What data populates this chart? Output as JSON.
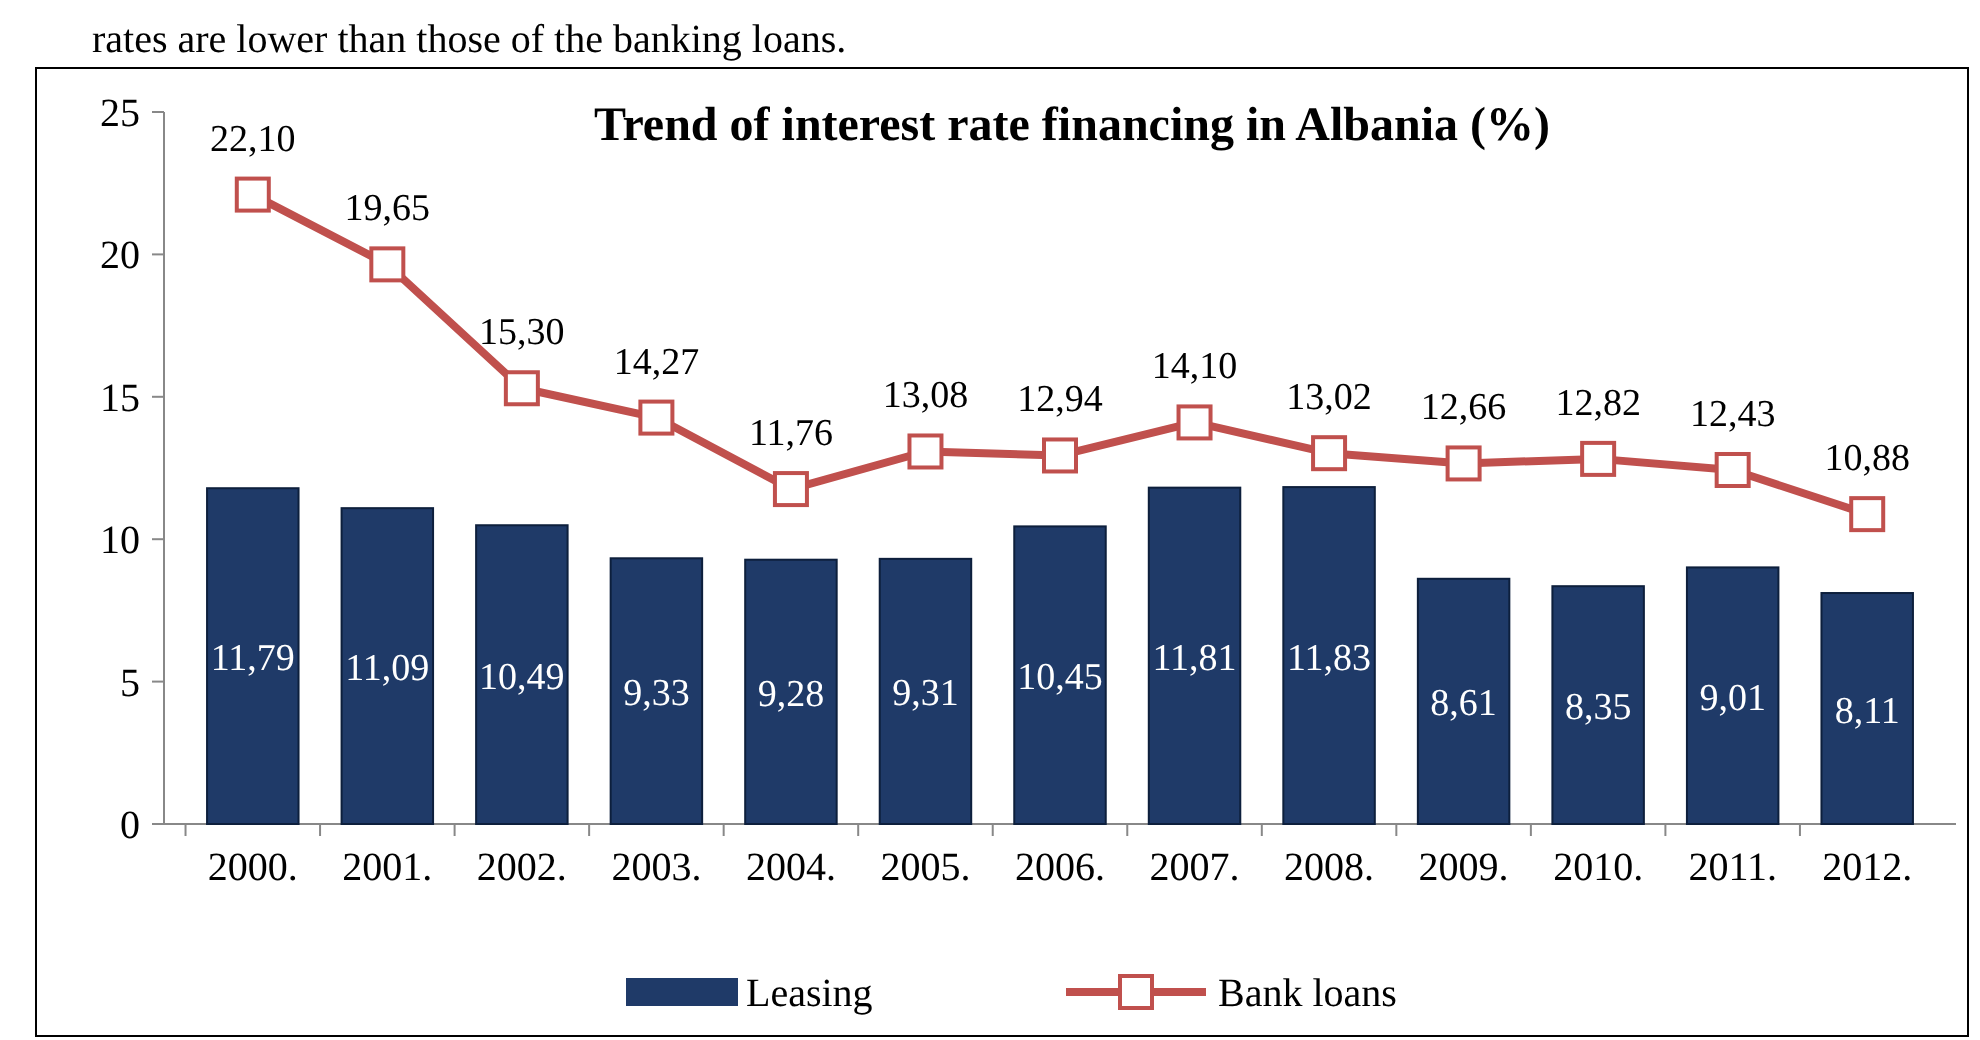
{
  "chart_data": {
    "type": "bar",
    "title": "Trend of interest rate financing in Albania (%)",
    "annotations": [
      "rates are lower than those of the banking loans."
    ],
    "categories": [
      "2000.",
      "2001.",
      "2002.",
      "2003.",
      "2004.",
      "2005.",
      "2006.",
      "2007.",
      "2008.",
      "2009.",
      "2010.",
      "2011.",
      "2012."
    ],
    "series": [
      {
        "name": "Leasing",
        "color": "#1f3a68",
        "values": [
          11.79,
          11.09,
          10.49,
          9.33,
          9.28,
          9.31,
          10.45,
          11.81,
          11.83,
          8.61,
          8.35,
          9.01,
          8.11
        ],
        "value_labels": [
          "11,79",
          "11,09",
          "10,49",
          "9,33",
          "9,28",
          "9,31",
          "10,45",
          "11,81",
          "11,83",
          "8,61",
          "8,35",
          "9,01",
          "8,11"
        ]
      },
      {
        "name": "Bank loans",
        "type": "line",
        "color": "#c0504d",
        "marker": "square",
        "values": [
          22.1,
          19.65,
          15.3,
          14.27,
          11.76,
          13.08,
          12.94,
          14.1,
          13.02,
          12.66,
          12.82,
          12.43,
          10.88
        ],
        "value_labels": [
          "22,10",
          "19,65",
          "15,30",
          "14,27",
          "11,76",
          "13,08",
          "12,94",
          "14,10",
          "13,02",
          "12,66",
          "12,82",
          "12,43",
          "10,88"
        ]
      }
    ],
    "ylim": [
      0,
      25
    ],
    "yticks": [
      0,
      5,
      10,
      15,
      20,
      25
    ],
    "legend": "bottom"
  }
}
